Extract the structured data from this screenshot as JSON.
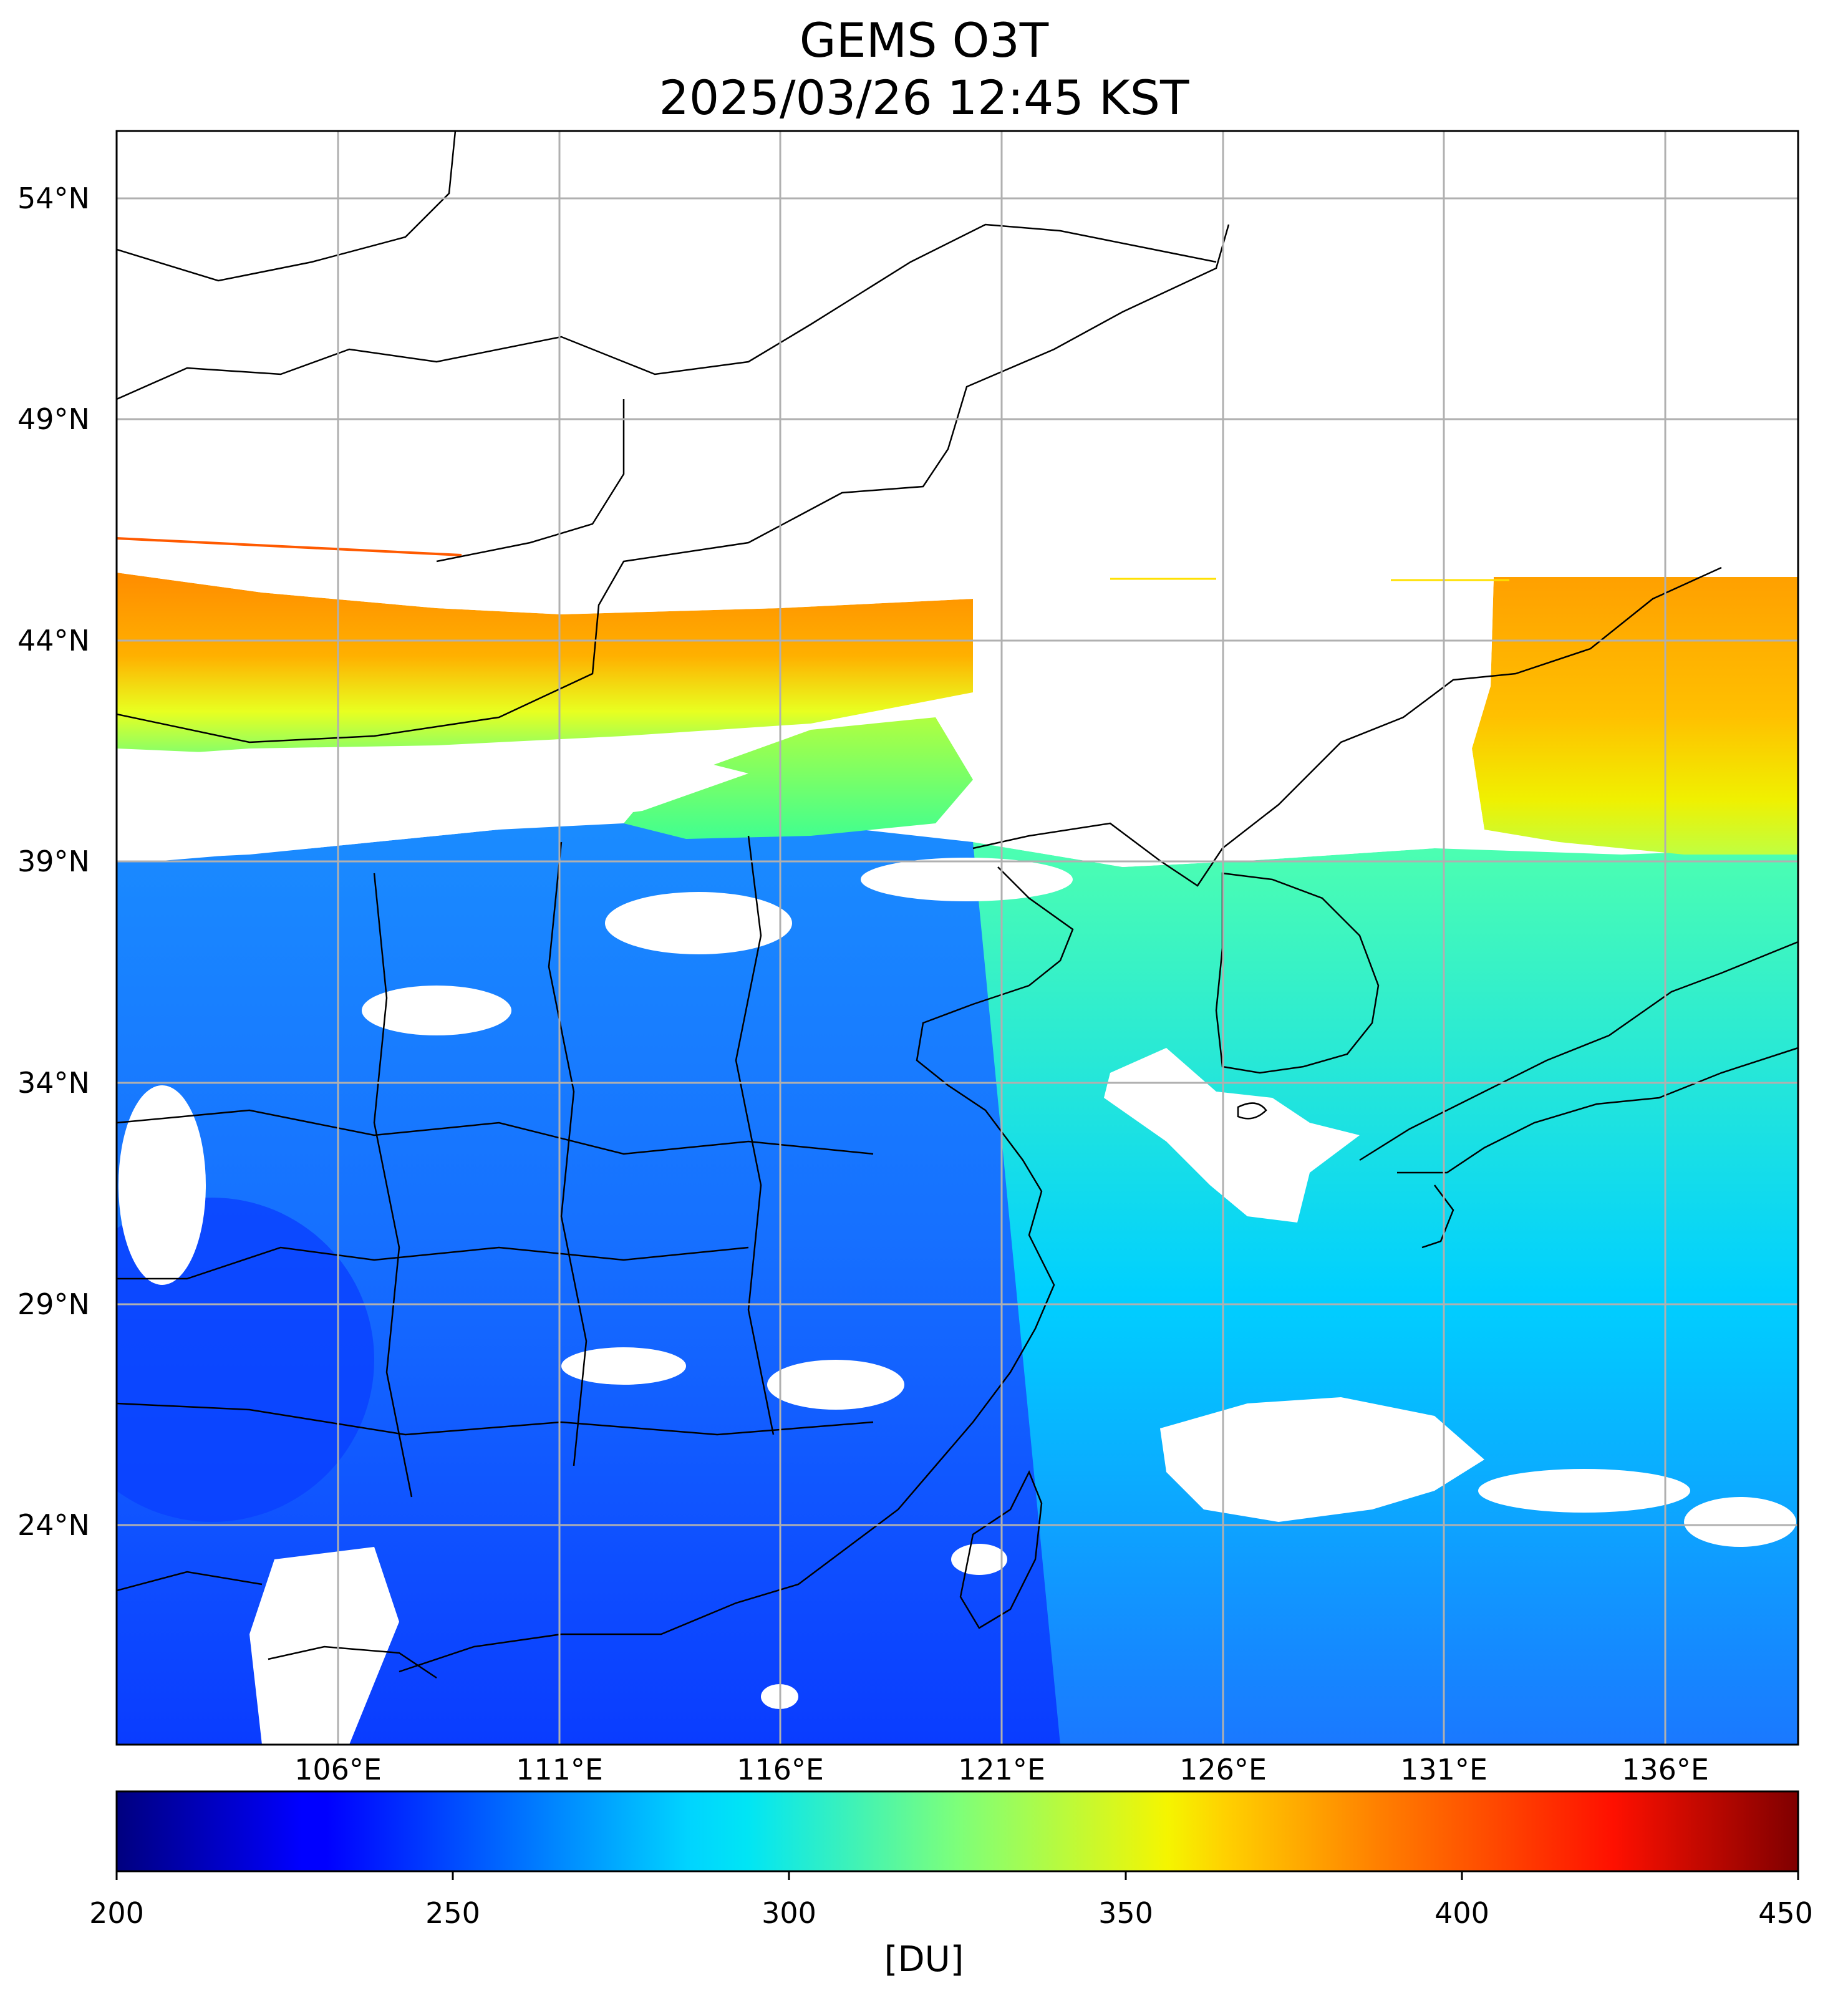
{
  "title": {
    "line1": "GEMS O3T",
    "line2": "2025/03/26 12:45 KST"
  },
  "map": {
    "lat_ticks": [
      "54°N",
      "49°N",
      "44°N",
      "39°N",
      "34°N",
      "29°N",
      "24°N"
    ],
    "lon_ticks": [
      "106°E",
      "111°E",
      "116°E",
      "121°E",
      "126°E",
      "131°E",
      "136°E"
    ],
    "extent_lon": [
      101,
      139
    ],
    "extent_lat": [
      19.5,
      56
    ]
  },
  "colorbar": {
    "colormap": "jet",
    "ticks": [
      "200",
      "250",
      "300",
      "350",
      "400",
      "450"
    ],
    "range": [
      200,
      450
    ],
    "unit": "[DU]"
  }
}
